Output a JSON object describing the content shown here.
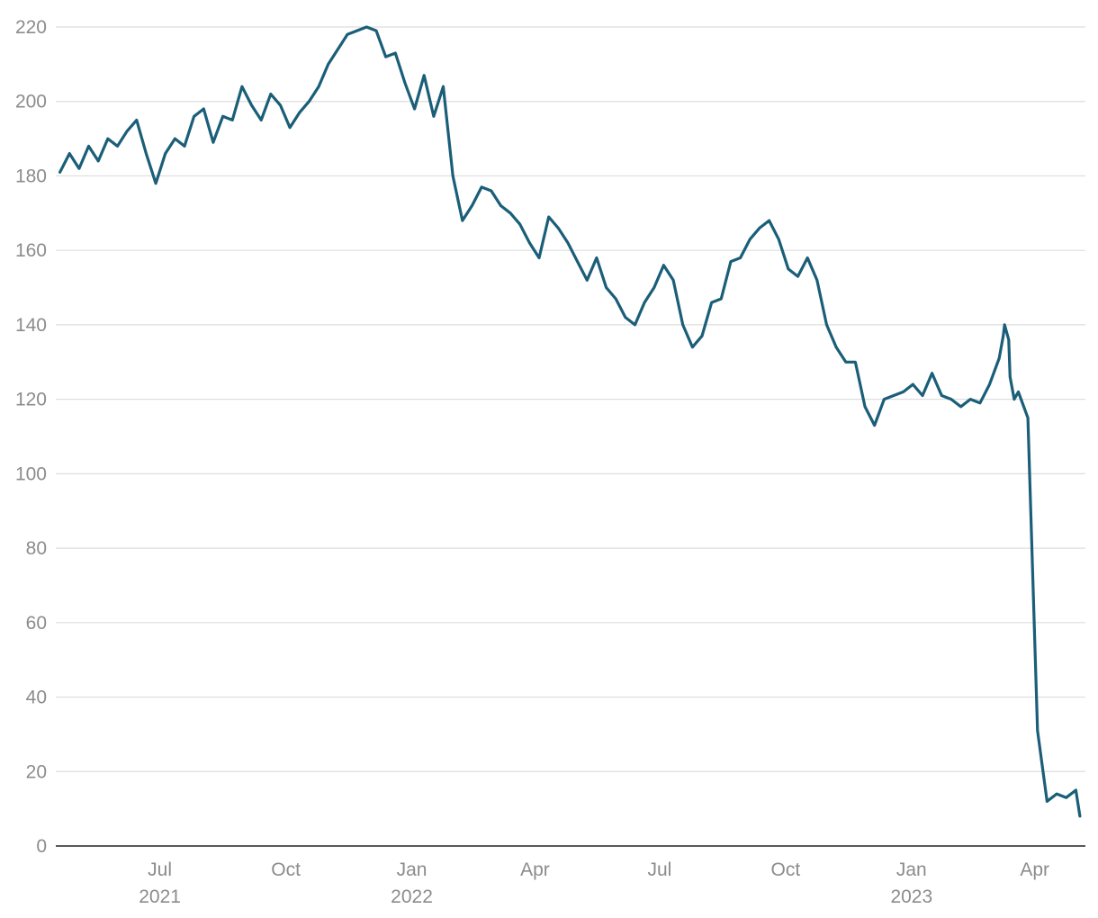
{
  "chart_data": {
    "type": "line",
    "title": "",
    "xlabel": "",
    "ylabel": "",
    "ylim": [
      0,
      220
    ],
    "y_ticks": [
      0,
      20,
      40,
      60,
      80,
      100,
      120,
      140,
      160,
      180,
      200,
      220
    ],
    "x_range": [
      "2021-04-16",
      "2023-05-08"
    ],
    "x_ticks": [
      {
        "date": "2021-07-01",
        "label": "Jul",
        "sublabel": "2021"
      },
      {
        "date": "2021-10-01",
        "label": "Oct",
        "sublabel": ""
      },
      {
        "date": "2022-01-01",
        "label": "Jan",
        "sublabel": "2022"
      },
      {
        "date": "2022-04-01",
        "label": "Apr",
        "sublabel": ""
      },
      {
        "date": "2022-07-01",
        "label": "Jul",
        "sublabel": ""
      },
      {
        "date": "2022-10-01",
        "label": "Oct",
        "sublabel": ""
      },
      {
        "date": "2023-01-01",
        "label": "Jan",
        "sublabel": "2023"
      },
      {
        "date": "2023-04-01",
        "label": "Apr",
        "sublabel": ""
      }
    ],
    "grid": true,
    "line_color": "#1a5e78",
    "series": [
      {
        "x": [
          "2021-04-19",
          "2021-04-26",
          "2021-05-03",
          "2021-05-10",
          "2021-05-17",
          "2021-05-24",
          "2021-05-31",
          "2021-06-07",
          "2021-06-14",
          "2021-06-21",
          "2021-06-28",
          "2021-07-05",
          "2021-07-12",
          "2021-07-19",
          "2021-07-26",
          "2021-08-02",
          "2021-08-09",
          "2021-08-16",
          "2021-08-23",
          "2021-08-30",
          "2021-09-06",
          "2021-09-13",
          "2021-09-20",
          "2021-09-27",
          "2021-10-04",
          "2021-10-11",
          "2021-10-18",
          "2021-10-25",
          "2021-11-01",
          "2021-11-08",
          "2021-11-15",
          "2021-11-22",
          "2021-11-29",
          "2021-12-06",
          "2021-12-13",
          "2021-12-20",
          "2021-12-27",
          "2022-01-03",
          "2022-01-10",
          "2022-01-17",
          "2022-01-24",
          "2022-01-31",
          "2022-02-07",
          "2022-02-14",
          "2022-02-21",
          "2022-02-28",
          "2022-03-07",
          "2022-03-14",
          "2022-03-21",
          "2022-03-28",
          "2022-04-04",
          "2022-04-11",
          "2022-04-18",
          "2022-04-25",
          "2022-05-02",
          "2022-05-09",
          "2022-05-16",
          "2022-05-23",
          "2022-05-30",
          "2022-06-06",
          "2022-06-13",
          "2022-06-20",
          "2022-06-27",
          "2022-07-04",
          "2022-07-11",
          "2022-07-18",
          "2022-07-25",
          "2022-08-01",
          "2022-08-08",
          "2022-08-15",
          "2022-08-22",
          "2022-08-29",
          "2022-09-05",
          "2022-09-12",
          "2022-09-19",
          "2022-09-26",
          "2022-10-03",
          "2022-10-10",
          "2022-10-17",
          "2022-10-24",
          "2022-10-31",
          "2022-11-07",
          "2022-11-14",
          "2022-11-21",
          "2022-11-28",
          "2022-12-05",
          "2022-12-12",
          "2022-12-19",
          "2022-12-26",
          "2023-01-02",
          "2023-01-09",
          "2023-01-16",
          "2023-01-23",
          "2023-01-30",
          "2023-02-06",
          "2023-02-13",
          "2023-02-20",
          "2023-02-27",
          "2023-03-06",
          "2023-03-09",
          "2023-03-10",
          "2023-03-13",
          "2023-03-14",
          "2023-03-17",
          "2023-03-20",
          "2023-03-27",
          "2023-04-03",
          "2023-04-10",
          "2023-04-17",
          "2023-04-24",
          "2023-05-01",
          "2023-05-04"
        ],
        "y": [
          181,
          186,
          182,
          188,
          184,
          190,
          188,
          192,
          195,
          186,
          178,
          186,
          190,
          188,
          196,
          198,
          189,
          196,
          195,
          204,
          199,
          195,
          202,
          199,
          193,
          197,
          200,
          204,
          210,
          214,
          218,
          219,
          220,
          219,
          212,
          213,
          205,
          198,
          207,
          196,
          204,
          180,
          168,
          172,
          177,
          176,
          172,
          170,
          167,
          162,
          158,
          169,
          166,
          162,
          157,
          152,
          158,
          150,
          147,
          142,
          140,
          146,
          150,
          156,
          152,
          140,
          134,
          137,
          146,
          147,
          157,
          158,
          163,
          166,
          168,
          163,
          155,
          153,
          158,
          152,
          140,
          134,
          130,
          130,
          118,
          113,
          120,
          121,
          122,
          124,
          121,
          127,
          121,
          120,
          118,
          120,
          119,
          124,
          131,
          137,
          140,
          136,
          126,
          120,
          122,
          115,
          31,
          12,
          14,
          13,
          15,
          8
        ]
      }
    ]
  }
}
